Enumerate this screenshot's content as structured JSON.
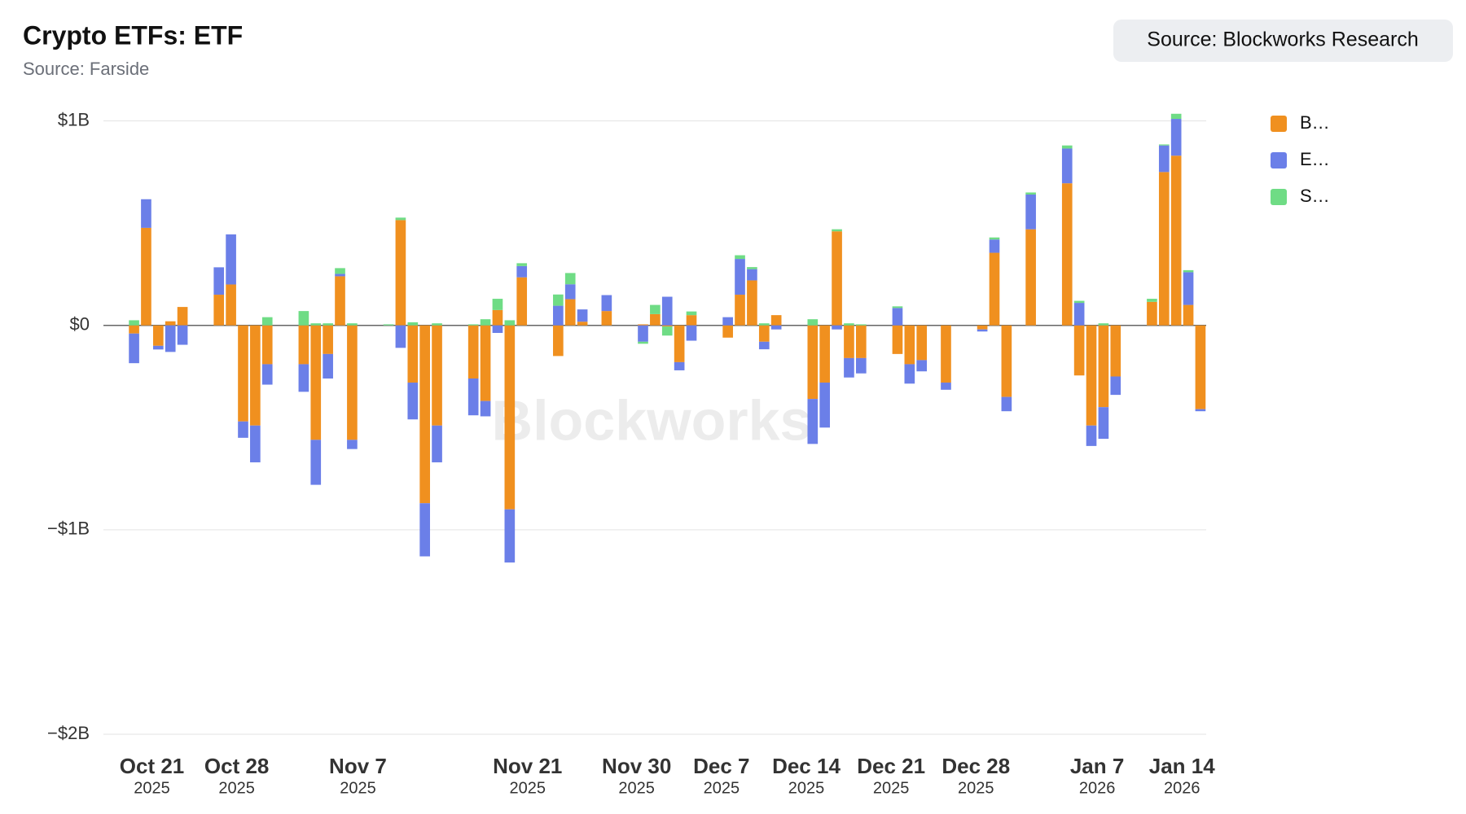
{
  "chart_data": {
    "type": "stacked_bar",
    "title": "Crypto ETFs: ETF",
    "subtitle": "Source: Farside",
    "source_button": "Source: Blockworks Research",
    "watermark": "Blockworks",
    "x": [
      "2025-10-20",
      "2025-10-21",
      "2025-10-22",
      "2025-10-23",
      "2025-10-24",
      "2025-10-27",
      "2025-10-28",
      "2025-10-29",
      "2025-10-30",
      "2025-10-31",
      "2025-11-03",
      "2025-11-04",
      "2025-11-05",
      "2025-11-06",
      "2025-11-07",
      "2025-11-10",
      "2025-11-11",
      "2025-11-12",
      "2025-11-13",
      "2025-11-14",
      "2025-11-17",
      "2025-11-18",
      "2025-11-19",
      "2025-11-20",
      "2025-11-21",
      "2025-11-24",
      "2025-11-25",
      "2025-11-26",
      "2025-11-28",
      "2025-12-01",
      "2025-12-02",
      "2025-12-03",
      "2025-12-04",
      "2025-12-05",
      "2025-12-08",
      "2025-12-09",
      "2025-12-10",
      "2025-12-11",
      "2025-12-12",
      "2025-12-15",
      "2025-12-16",
      "2025-12-17",
      "2025-12-18",
      "2025-12-19",
      "2025-12-22",
      "2025-12-23",
      "2025-12-24",
      "2025-12-26",
      "2025-12-29",
      "2025-12-30",
      "2025-12-31",
      "2026-01-02",
      "2026-01-05",
      "2026-01-06",
      "2026-01-07",
      "2026-01-08",
      "2026-01-09",
      "2026-01-12",
      "2026-01-13",
      "2026-01-14",
      "2026-01-15",
      "2026-01-16"
    ],
    "series": [
      {
        "name": "B…",
        "color": "#f0901f",
        "values": [
          -40000000,
          477000000,
          -100000000,
          20000000,
          90000000,
          150000000,
          200000000,
          -470000000,
          -490000000,
          -190000000,
          -190000000,
          -560000000,
          -140000000,
          240000000,
          -560000000,
          0,
          515000000,
          -280000000,
          -870000000,
          -490000000,
          -260000000,
          -370000000,
          75000000,
          -900000000,
          235000000,
          -150000000,
          128000000,
          18000000,
          70000000,
          5000000,
          55000000,
          -5000000,
          -180000000,
          50000000,
          -60000000,
          150000000,
          220000000,
          -80000000,
          50000000,
          -360000000,
          -280000000,
          460000000,
          -160000000,
          -160000000,
          -140000000,
          -190000000,
          -170000000,
          -280000000,
          -20000000,
          355000000,
          -350000000,
          470000000,
          695000000,
          -245000000,
          -490000000,
          -400000000,
          -250000000,
          115000000,
          750000000,
          830000000,
          100000000,
          -410000000
        ]
      },
      {
        "name": "E…",
        "color": "#6b7fe8",
        "values": [
          -145000000,
          140000000,
          -18000000,
          -130000000,
          -95000000,
          134000000,
          245000000,
          -80000000,
          -180000000,
          -100000000,
          -135000000,
          -220000000,
          -120000000,
          12000000,
          -45000000,
          0,
          -110000000,
          -180000000,
          -260000000,
          -180000000,
          -180000000,
          -75000000,
          -37000000,
          -260000000,
          55000000,
          96000000,
          73000000,
          60000000,
          78000000,
          -80000000,
          0,
          140000000,
          -40000000,
          -75000000,
          40000000,
          175000000,
          55000000,
          -37000000,
          -20000000,
          -220000000,
          -220000000,
          -20000000,
          -95000000,
          -75000000,
          85000000,
          -95000000,
          -55000000,
          -35000000,
          -10000000,
          65000000,
          -70000000,
          170000000,
          170000000,
          110000000,
          -100000000,
          -155000000,
          -90000000,
          0,
          130000000,
          180000000,
          160000000,
          -10000000
        ]
      },
      {
        "name": "S…",
        "color": "#6fdc85",
        "values": [
          25000000,
          0,
          0,
          0,
          0,
          0,
          0,
          0,
          0,
          40000000,
          70000000,
          10000000,
          10000000,
          28000000,
          10000000,
          5000000,
          12000000,
          15000000,
          0,
          10000000,
          5000000,
          30000000,
          55000000,
          25000000,
          14000000,
          55000000,
          55000000,
          0,
          0,
          -10000000,
          45000000,
          -45000000,
          0,
          18000000,
          0,
          18000000,
          10000000,
          10000000,
          0,
          30000000,
          0,
          10000000,
          10000000,
          5000000,
          8000000,
          0,
          0,
          0,
          0,
          10000000,
          0,
          10000000,
          15000000,
          10000000,
          0,
          10000000,
          0,
          15000000,
          5000000,
          25000000,
          10000000,
          0
        ]
      }
    ],
    "xlim": [
      "2025-10-17",
      "2026-01-16"
    ],
    "xticks": [
      {
        "value": "2025-10-21",
        "label": "Oct 21",
        "year": "2025"
      },
      {
        "value": "2025-10-28",
        "label": "Oct 28",
        "year": "2025"
      },
      {
        "value": "2025-11-07",
        "label": "Nov 7",
        "year": "2025"
      },
      {
        "value": "2025-11-21",
        "label": "Nov 21",
        "year": "2025"
      },
      {
        "value": "2025-11-30",
        "label": "Nov 30",
        "year": "2025"
      },
      {
        "value": "2025-12-07",
        "label": "Dec 7",
        "year": "2025"
      },
      {
        "value": "2025-12-14",
        "label": "Dec 14",
        "year": "2025"
      },
      {
        "value": "2025-12-21",
        "label": "Dec 21",
        "year": "2025"
      },
      {
        "value": "2025-12-28",
        "label": "Dec 28",
        "year": "2025"
      },
      {
        "value": "2026-01-07",
        "label": "Jan 7",
        "year": "2026"
      },
      {
        "value": "2026-01-14",
        "label": "Jan 14",
        "year": "2026"
      }
    ],
    "ylim": [
      -2000000000,
      1050000000
    ],
    "yticks": [
      {
        "value": -2000000000,
        "label": "−$2B"
      },
      {
        "value": -1000000000,
        "label": "−$1B"
      },
      {
        "value": 0,
        "label": "$0"
      },
      {
        "value": 1000000000,
        "label": "$1B"
      }
    ],
    "grid": true,
    "legend": "right"
  }
}
